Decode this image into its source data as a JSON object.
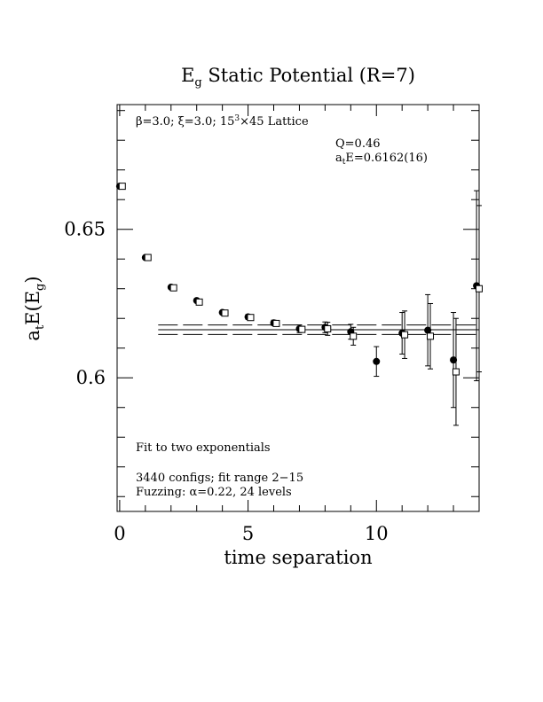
{
  "chart_data": {
    "type": "scatter",
    "title": {
      "main": "E",
      "sub": "g",
      "rest": " Static Potential (R=7)"
    },
    "ylabel": {
      "a": "a",
      "t": "t",
      "mid": "E(E",
      "g": "g",
      "end": ")"
    },
    "xlabel": "time separation",
    "xlim": [
      -0.1,
      14
    ],
    "ylim": [
      0.555,
      0.692
    ],
    "xticks": [
      0,
      5,
      10
    ],
    "yticks": [
      0.6,
      0.65
    ],
    "ytick_labels": [
      "0.6",
      "0.65"
    ],
    "annotations": {
      "lattice": {
        "pre": "β=3.0; ξ=3.0; 15",
        "sup": "3",
        "post": "×45 Lattice"
      },
      "q": "Q=0.46",
      "energy": {
        "a": "a",
        "t": "t",
        "rest": "E=0.6162(16)"
      },
      "fit_line1": "Fit to two exponentials",
      "fit_line2": "3440 configs; fit range 2−15",
      "fit_line3": "Fuzzing: α=0.22, 24 levels"
    },
    "fit": {
      "value": 0.6162,
      "error": 0.0016,
      "x_range": [
        1.5,
        14
      ]
    },
    "series": [
      {
        "marker": "filled-circle",
        "points": [
          {
            "x": 0,
            "y": 0.6645,
            "err": 0.0003
          },
          {
            "x": 1,
            "y": 0.6405,
            "err": 0.0003
          },
          {
            "x": 2,
            "y": 0.6305,
            "err": 0.0004
          },
          {
            "x": 3,
            "y": 0.626,
            "err": 0.0005
          },
          {
            "x": 4,
            "y": 0.622,
            "err": 0.0006
          },
          {
            "x": 5,
            "y": 0.6205,
            "err": 0.0008
          },
          {
            "x": 6,
            "y": 0.6185,
            "err": 0.0009
          },
          {
            "x": 7,
            "y": 0.6165,
            "err": 0.0013
          },
          {
            "x": 8,
            "y": 0.617,
            "err": 0.0018
          },
          {
            "x": 9,
            "y": 0.6155,
            "err": 0.0025
          },
          {
            "x": 10,
            "y": 0.6055,
            "err": 0.005
          },
          {
            "x": 11,
            "y": 0.615,
            "err": 0.007
          },
          {
            "x": 12,
            "y": 0.616,
            "err": 0.012
          },
          {
            "x": 13,
            "y": 0.606,
            "err": 0.016
          },
          {
            "x": 13.9,
            "y": 0.631,
            "err": 0.032
          }
        ]
      },
      {
        "marker": "open-square",
        "points": [
          {
            "x": 0.1,
            "y": 0.6645,
            "err": 0.0002
          },
          {
            "x": 1.1,
            "y": 0.6405,
            "err": 0.0002
          },
          {
            "x": 2.1,
            "y": 0.6303,
            "err": 0.0003
          },
          {
            "x": 3.1,
            "y": 0.6255,
            "err": 0.0004
          },
          {
            "x": 4.1,
            "y": 0.6218,
            "err": 0.0005
          },
          {
            "x": 5.1,
            "y": 0.6203,
            "err": 0.0006
          },
          {
            "x": 6.1,
            "y": 0.6183,
            "err": 0.0008
          },
          {
            "x": 7.1,
            "y": 0.6163,
            "err": 0.001
          },
          {
            "x": 8.1,
            "y": 0.6165,
            "err": 0.0022
          },
          {
            "x": 9.1,
            "y": 0.614,
            "err": 0.003
          },
          {
            "x": 11.1,
            "y": 0.6145,
            "err": 0.008
          },
          {
            "x": 12.1,
            "y": 0.614,
            "err": 0.011
          },
          {
            "x": 13.1,
            "y": 0.602,
            "err": 0.018
          },
          {
            "x": 14.0,
            "y": 0.63,
            "err": 0.028
          }
        ]
      }
    ]
  }
}
